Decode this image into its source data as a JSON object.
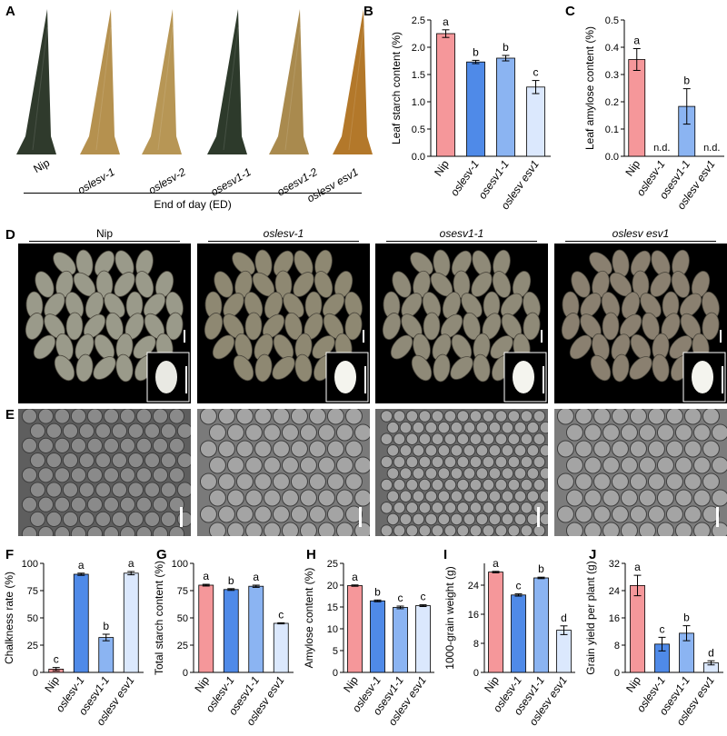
{
  "panels": {
    "A": "A",
    "B": "B",
    "C": "C",
    "D": "D",
    "E": "E",
    "F": "F",
    "G": "G",
    "H": "H",
    "I": "I",
    "J": "J"
  },
  "leaves": {
    "labels": [
      "Nip",
      "oslesv-1",
      "oslesv-2",
      "osesv1-1",
      "osesv1-2",
      "oslesv esv1"
    ],
    "italic": [
      false,
      true,
      true,
      true,
      true,
      true
    ],
    "colors": [
      "#2f3a2c",
      "#b5914f",
      "#b79655",
      "#2d3a2b",
      "#a98a4e",
      "#b3782a"
    ],
    "caption": "End of day (ED)"
  },
  "grains": {
    "headers": [
      "Nip",
      "oslesv-1",
      "osesv1-1",
      "oslesv esv1"
    ],
    "italic": [
      false,
      true,
      true,
      true
    ]
  },
  "colors": {
    "nip": "#f5979a",
    "oslesv": "#4f8ae8",
    "osesv1": "#8bb4f2",
    "double": "#dbe8fd"
  },
  "chart_data": [
    {
      "id": "B",
      "type": "bar",
      "ylabel": "Leaf starch content (%)",
      "categories": [
        "Nip",
        "oslesv-1",
        "osesv1-1",
        "oslesv esv1"
      ],
      "values": [
        2.25,
        1.73,
        1.8,
        1.27
      ],
      "errors": [
        0.07,
        0.03,
        0.05,
        0.12
      ],
      "letters": [
        "a",
        "b",
        "b",
        "c"
      ],
      "ylim": [
        0,
        2.5
      ],
      "ticks": [
        "0.0",
        "0.5",
        "1.0",
        "1.5",
        "2.0",
        "2.5"
      ]
    },
    {
      "id": "C",
      "type": "bar",
      "ylabel": "Leaf amylose content (%)",
      "categories": [
        "Nip",
        "oslesv-1",
        "osesv1-1",
        "oslesv esv1"
      ],
      "values": [
        0.355,
        null,
        0.183,
        null
      ],
      "errors": [
        0.04,
        null,
        0.065,
        null
      ],
      "letters": [
        "a",
        "n.d.",
        "b",
        "n.d."
      ],
      "ylim": [
        0,
        0.5
      ],
      "ticks": [
        "0.0",
        "0.1",
        "0.2",
        "0.3",
        "0.4",
        "0.5"
      ]
    },
    {
      "id": "F",
      "type": "bar",
      "ylabel": "Chalkness rate (%)",
      "categories": [
        "Nip",
        "oslesv-1",
        "osesv1-1",
        "oslesv esv1"
      ],
      "values": [
        3,
        90,
        32,
        91
      ],
      "errors": [
        1.5,
        1,
        3,
        1.5
      ],
      "letters": [
        "c",
        "a",
        "b",
        "a"
      ],
      "ylim": [
        0,
        100
      ],
      "ticks": [
        "0",
        "25",
        "50",
        "75",
        "100"
      ]
    },
    {
      "id": "G",
      "type": "bar",
      "ylabel": "Total starch content (%)",
      "categories": [
        "Nip",
        "oslesv-1",
        "osesv1-1",
        "oslesv esv1"
      ],
      "values": [
        80,
        76,
        79,
        45
      ],
      "errors": [
        0.8,
        0.8,
        1,
        0.5
      ],
      "letters": [
        "a",
        "b",
        "a",
        "c"
      ],
      "ylim": [
        0,
        100
      ],
      "ticks": [
        "0",
        "25",
        "50",
        "75",
        "100"
      ]
    },
    {
      "id": "H",
      "type": "bar",
      "ylabel": "Amylose content (%)",
      "categories": [
        "Nip",
        "oslesv-1",
        "osesv1-1",
        "oslesv esv1"
      ],
      "values": [
        19.9,
        16.4,
        14.9,
        15.3
      ],
      "errors": [
        0.15,
        0.2,
        0.3,
        0.2
      ],
      "letters": [
        "a",
        "b",
        "c",
        "c"
      ],
      "ylim": [
        0,
        25
      ],
      "ticks": [
        "0",
        "5",
        "10",
        "15",
        "20",
        "25"
      ]
    },
    {
      "id": "I",
      "type": "bar",
      "ylabel": "1000-grain weight (g)",
      "categories": [
        "Nip",
        "oslesv-1",
        "osesv1-1",
        "oslesv esv1"
      ],
      "values": [
        27.6,
        21.3,
        26,
        11.6
      ],
      "errors": [
        0.2,
        0.3,
        0.2,
        1.2
      ],
      "letters": [
        "a",
        "c",
        "b",
        "d"
      ],
      "ylim": [
        0,
        30
      ],
      "ticks": [
        "0",
        "8",
        "16",
        "24"
      ],
      "tickvals": [
        0,
        8,
        16,
        24
      ]
    },
    {
      "id": "J",
      "type": "bar",
      "ylabel": "Grain yield per plant (g)",
      "categories": [
        "Nip",
        "oslesv-1",
        "osesv1-1",
        "oslesv esv1"
      ],
      "values": [
        25.5,
        8.3,
        11.5,
        2.8
      ],
      "errors": [
        3,
        2,
        2.2,
        0.6
      ],
      "letters": [
        "a",
        "c",
        "b",
        "d"
      ],
      "ylim": [
        0,
        32
      ],
      "ticks": [
        "0",
        "8",
        "16",
        "24",
        "32"
      ]
    }
  ]
}
